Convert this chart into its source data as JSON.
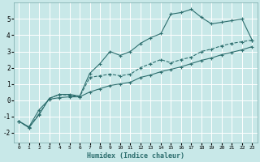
{
  "xlabel": "Humidex (Indice chaleur)",
  "bg_color": "#c8e8e8",
  "grid_color": "#ffffff",
  "line_color": "#2d6e6e",
  "xlim": [
    -0.5,
    23.5
  ],
  "ylim": [
    -2.6,
    6.0
  ],
  "xticks": [
    0,
    1,
    2,
    3,
    4,
    5,
    6,
    7,
    8,
    9,
    10,
    11,
    12,
    13,
    14,
    15,
    16,
    17,
    18,
    19,
    20,
    21,
    22,
    23
  ],
  "yticks": [
    -2,
    -1,
    0,
    1,
    2,
    3,
    4,
    5
  ],
  "line1_x": [
    0,
    1,
    2,
    3,
    4,
    5,
    6,
    7,
    8,
    9,
    10,
    11,
    12,
    13,
    14,
    15,
    16,
    17,
    18,
    19,
    20,
    21,
    22,
    23
  ],
  "line1_y": [
    -1.3,
    -1.7,
    -0.9,
    0.1,
    0.35,
    0.35,
    0.25,
    1.65,
    2.25,
    3.0,
    2.75,
    3.0,
    3.5,
    3.85,
    4.1,
    5.3,
    5.4,
    5.6,
    5.1,
    4.7,
    4.8,
    4.9,
    5.0,
    3.7
  ],
  "line2_x": [
    0,
    1,
    2,
    3,
    4,
    5,
    6,
    7,
    8,
    9,
    10,
    11,
    12,
    13,
    14,
    15,
    16,
    17,
    18,
    19,
    20,
    21,
    22,
    23
  ],
  "line2_y": [
    -1.3,
    -1.7,
    -0.85,
    0.1,
    0.35,
    0.3,
    0.2,
    1.4,
    1.5,
    1.6,
    1.5,
    1.6,
    2.0,
    2.25,
    2.5,
    2.3,
    2.5,
    2.65,
    3.0,
    3.15,
    3.35,
    3.5,
    3.6,
    3.7
  ],
  "line3_x": [
    0,
    1,
    2,
    3,
    4,
    5,
    6,
    7,
    8,
    9,
    10,
    11,
    12,
    13,
    14,
    15,
    16,
    17,
    18,
    19,
    20,
    21,
    22,
    23
  ],
  "line3_y": [
    -1.3,
    -1.65,
    -0.6,
    0.05,
    0.15,
    0.2,
    0.2,
    0.5,
    0.7,
    0.9,
    1.0,
    1.1,
    1.4,
    1.55,
    1.75,
    1.9,
    2.05,
    2.25,
    2.45,
    2.6,
    2.8,
    2.95,
    3.1,
    3.3
  ]
}
